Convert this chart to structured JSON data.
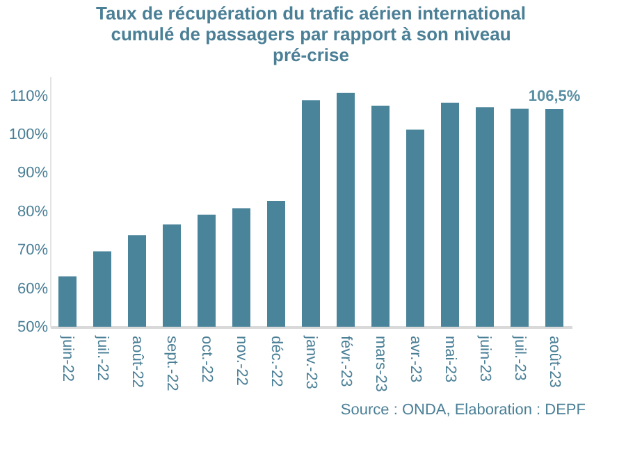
{
  "chart_data": {
    "type": "bar",
    "title": "Taux de récupération du trafic aérien international cumulé de passagers par rapport à son niveau pré-crise",
    "categories": [
      "juin-22",
      "juil.-22",
      "août-22",
      "sept.-22",
      "oct.-22",
      "nov.-22",
      "déc.-22",
      "janv.-23",
      "févr.-23",
      "mars-23",
      "avr.-23",
      "mai-23",
      "juin-23",
      "juil.-23",
      "août-23"
    ],
    "values": [
      63.1,
      69.6,
      73.8,
      76.6,
      79.1,
      80.8,
      82.7,
      108.8,
      110.7,
      107.4,
      101.2,
      108.2,
      107.0,
      106.6,
      106.5
    ],
    "value_labels": [
      null,
      null,
      null,
      null,
      null,
      null,
      null,
      null,
      null,
      null,
      null,
      null,
      null,
      null,
      "106,5%"
    ],
    "color": "#4a849a",
    "ylim": [
      50,
      115
    ],
    "yticks": [
      {
        "value": 50,
        "label": "50%"
      },
      {
        "value": 60,
        "label": "60%"
      },
      {
        "value": 70,
        "label": "70%"
      },
      {
        "value": 80,
        "label": "80%"
      },
      {
        "value": 90,
        "label": "90%"
      },
      {
        "value": 100,
        "label": "100%"
      },
      {
        "value": 110,
        "label": "110%"
      }
    ],
    "grid": false,
    "annotations": [
      "Source : ONDA, Elaboration : DEPF"
    ]
  }
}
